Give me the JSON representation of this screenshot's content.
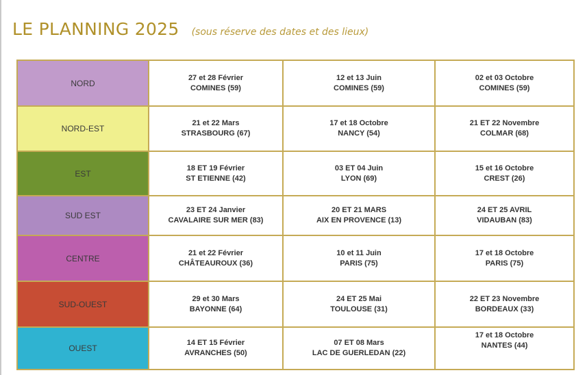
{
  "header": {
    "title": "LE PLANNING 2025",
    "subtitle": "(sous réserve des dates et des lieux)"
  },
  "colors": {
    "title": "#b0912a",
    "border": "#c5aa55"
  },
  "rows": [
    {
      "region": "NORD",
      "color": "#c19bcb",
      "sessions": [
        {
          "date": "27 et 28 Février",
          "place": "COMINES (59)"
        },
        {
          "date": "12 et 13 Juin",
          "place": "COMINES (59)"
        },
        {
          "date": "02 et 03 Octobre",
          "place": "COMINES (59)"
        }
      ]
    },
    {
      "region": "NORD-EST",
      "color": "#f0f08e",
      "sessions": [
        {
          "date": "21 et 22 Mars",
          "place": "STRASBOURG (67)"
        },
        {
          "date": "17 et 18 Octobre",
          "place": "NANCY (54)"
        },
        {
          "date": "21 ET 22 Novembre",
          "place": "COLMAR (68)"
        }
      ]
    },
    {
      "region": "EST",
      "color": "#6f9330",
      "sessions": [
        {
          "date": "18 ET 19 Février",
          "place": "ST ETIENNE (42)"
        },
        {
          "date": "03 ET 04 Juin",
          "place": "LYON (69)"
        },
        {
          "date": "15 et 16 Octobre",
          "place": "CREST (26)"
        }
      ]
    },
    {
      "region": "SUD EST",
      "color": "#ad8ac2",
      "sessions": [
        {
          "date": "23 ET 24 Janvier",
          "place": "CAVALAIRE SUR MER (83)"
        },
        {
          "date": "20 ET 21 MARS",
          "place": "AIX EN PROVENCE (13)"
        },
        {
          "date": "24 ET 25 AVRIL",
          "place": "VIDAUBAN (83)"
        }
      ]
    },
    {
      "region": "CENTRE",
      "color": "#bc5fad",
      "sessions": [
        {
          "date": "21 et 22 Février",
          "place": "CHÂTEAUROUX (36)"
        },
        {
          "date": "10 et 11 Juin",
          "place": "PARIS (75)"
        },
        {
          "date": "17 et 18 Octobre",
          "place": "PARIS (75)"
        }
      ]
    },
    {
      "region": "SUD-OUEST",
      "color": "#c74d34",
      "sessions": [
        {
          "date": "29 et 30 Mars",
          "place": "BAYONNE (64)"
        },
        {
          "date": "24 ET 25 Mai",
          "place": "TOULOUSE (31)"
        },
        {
          "date": "22 ET 23 Novembre",
          "place": "BORDEAUX (33)"
        }
      ]
    },
    {
      "region": "OUEST",
      "color": "#2fb3d1",
      "sessions": [
        {
          "date": "14 ET 15 Février",
          "place": "AVRANCHES (50)"
        },
        {
          "date": "07 ET 08 Mars",
          "place": "LAC DE GUERLEDAN (22)"
        },
        {
          "date": "17 et 18 Octobre",
          "place": "NANTES (44)"
        }
      ]
    }
  ]
}
